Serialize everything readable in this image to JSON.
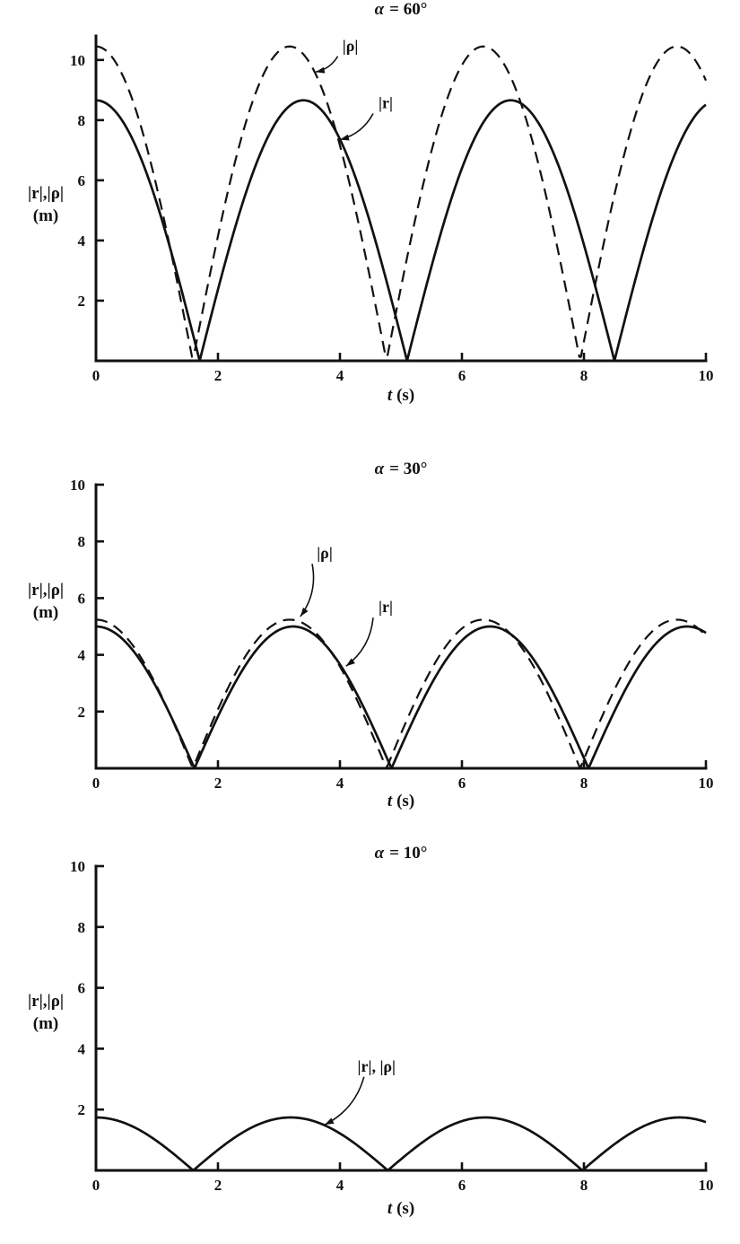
{
  "figure": {
    "background": "#ffffff",
    "ink": "#111111"
  },
  "chart_data": [
    {
      "type": "line",
      "title": "α = 60°",
      "title_symbol": "α",
      "title_rest": "= 60°",
      "xlabel": "t (s)",
      "xlabel_var": "t",
      "xlabel_units": "(s)",
      "ylabel": "|r|,|ρ|",
      "ylabel_units": "(m)",
      "xlim": [
        0,
        10
      ],
      "ylim": [
        0,
        10.8
      ],
      "xticks": [
        0,
        2,
        4,
        6,
        8,
        10
      ],
      "yticks": [
        0,
        2,
        4,
        6,
        8,
        10
      ],
      "grid": false,
      "legend_position": "inline-annotations",
      "series": [
        {
          "name": "|ρ|",
          "line": "dashed",
          "model": "y = A·|cos(πt/P)|",
          "amplitude_A_m": 10.45,
          "half_period_P_s": 3.175,
          "zeros_t_s": [
            1.59,
            4.76,
            7.94
          ],
          "peaks_t_s": [
            0,
            3.18,
            6.35,
            9.52
          ],
          "peak_value_m": 10.45,
          "value_at_t10_m": 9.3
        },
        {
          "name": "|r|",
          "line": "solid",
          "model": "y = A·|cos(πt/P)|",
          "amplitude_A_m": 8.66,
          "half_period_P_s": 3.4,
          "zeros_t_s": [
            1.7,
            5.1,
            8.5
          ],
          "peaks_t_s": [
            0,
            3.4,
            6.8
          ],
          "peak_value_m": 8.66,
          "value_at_t10_m": 8.5
        }
      ],
      "annotations": [
        {
          "text": "|ρ|",
          "label_t": 4.17,
          "label_y": 10.3,
          "tip_t": 3.6,
          "tip_y": 9.6
        },
        {
          "text": "|r|",
          "label_t": 4.75,
          "label_y": 8.4,
          "tip_t": 4.0,
          "tip_y": 7.35
        }
      ]
    },
    {
      "type": "line",
      "title": "α = 30°",
      "title_symbol": "α",
      "title_rest": "= 30°",
      "xlabel": "t (s)",
      "xlabel_var": "t",
      "xlabel_units": "(s)",
      "ylabel": "|r|,|ρ|",
      "ylabel_units": "(m)",
      "xlim": [
        0,
        10
      ],
      "ylim": [
        0,
        10
      ],
      "xticks": [
        0,
        2,
        4,
        6,
        8,
        10
      ],
      "yticks": [
        0,
        2,
        4,
        6,
        8,
        10
      ],
      "grid": false,
      "legend_position": "inline-annotations",
      "series": [
        {
          "name": "|ρ|",
          "line": "dashed",
          "model": "y = A·|cos(πt/P)|",
          "amplitude_A_m": 5.24,
          "half_period_P_s": 3.175,
          "zeros_t_s": [
            1.59,
            4.76,
            7.94
          ],
          "peaks_t_s": [
            0,
            3.18,
            6.35,
            9.52
          ],
          "peak_value_m": 5.24
        },
        {
          "name": "|r|",
          "line": "solid",
          "model": "y = A·|cos(πt/P)|",
          "amplitude_A_m": 5.0,
          "half_period_P_s": 3.23,
          "zeros_t_s": [
            1.61,
            4.84,
            8.07
          ],
          "peaks_t_s": [
            0,
            3.23,
            6.46,
            9.69
          ],
          "peak_value_m": 5.0
        }
      ],
      "annotations": [
        {
          "text": "|ρ|",
          "label_t": 3.75,
          "label_y": 7.4,
          "tip_t": 3.35,
          "tip_y": 5.35
        },
        {
          "text": "|r|",
          "label_t": 4.75,
          "label_y": 5.5,
          "tip_t": 4.1,
          "tip_y": 3.6
        }
      ]
    },
    {
      "type": "line",
      "title": "α = 10°",
      "title_symbol": "α",
      "title_rest": "= 10°",
      "xlabel": "t (s)",
      "xlabel_var": "t",
      "xlabel_units": "(s)",
      "ylabel": "|r|,|ρ|",
      "ylabel_units": "(m)",
      "xlim": [
        0,
        10
      ],
      "ylim": [
        0,
        10
      ],
      "xticks": [
        0,
        2,
        4,
        6,
        8,
        10
      ],
      "yticks": [
        0,
        2,
        4,
        6,
        8,
        10
      ],
      "grid": false,
      "legend_position": "inline-annotations",
      "series": [
        {
          "name": "|r|, |ρ|",
          "line": "solid",
          "model": "y = A·|cos(πt/P)|",
          "amplitude_A_m": 1.74,
          "half_period_P_s": 3.19,
          "zeros_t_s": [
            1.6,
            4.79,
            7.97
          ],
          "peaks_t_s": [
            0,
            3.19,
            6.38,
            9.57
          ],
          "peak_value_m": 1.74
        }
      ],
      "annotations": [
        {
          "text": "|r|, |ρ|",
          "label_t": 4.6,
          "label_y": 3.25,
          "tip_t": 3.75,
          "tip_y": 1.5
        }
      ]
    }
  ]
}
